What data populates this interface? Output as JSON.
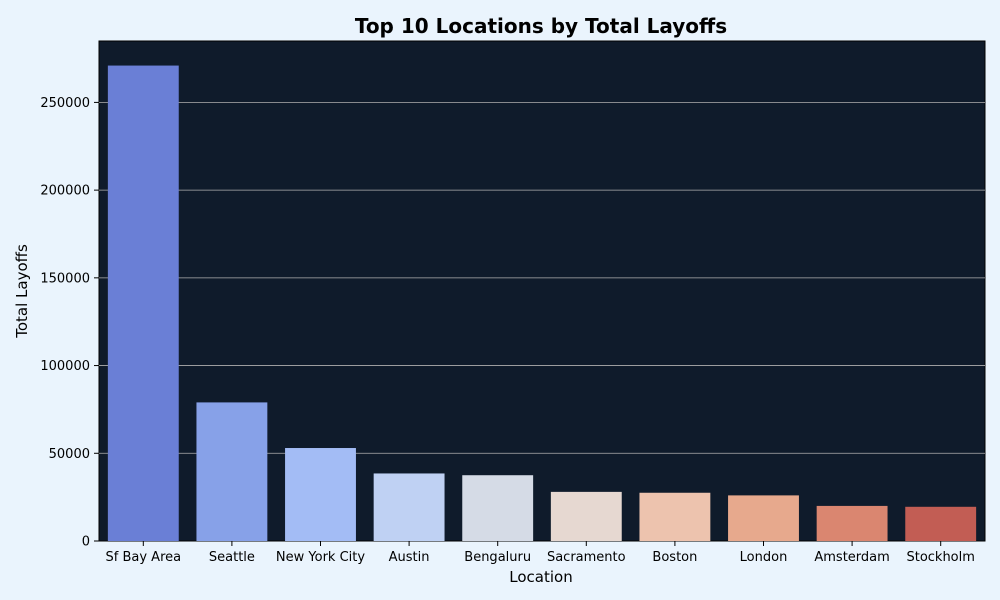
{
  "chart_data": {
    "type": "bar",
    "title": "Top 10 Locations by Total Layoffs",
    "xlabel": "Location",
    "ylabel": "Total Layoffs",
    "categories": [
      "Sf Bay Area",
      "Seattle",
      "New York City",
      "Austin",
      "Bengaluru",
      "Sacramento",
      "Boston",
      "London",
      "Amsterdam",
      "Stockholm"
    ],
    "values": [
      271000,
      79000,
      53000,
      38500,
      37500,
      28000,
      27500,
      26000,
      20000,
      19500
    ],
    "colors": [
      "#6a7fd6",
      "#87a1e8",
      "#a3bcf5",
      "#bfd1f3",
      "#d5dbe6",
      "#e6d8d1",
      "#edc3ae",
      "#e7a98d",
      "#da8670",
      "#c25d54"
    ],
    "ylim": [
      0,
      285000
    ],
    "yticks": [
      0,
      50000,
      100000,
      150000,
      200000,
      250000
    ],
    "ytick_labels": [
      "0",
      "50000",
      "100000",
      "150000",
      "200000",
      "250000"
    ],
    "grid": "horizontal",
    "plot_background": "#0f1b2b",
    "page_background": "#eaf4fd"
  }
}
